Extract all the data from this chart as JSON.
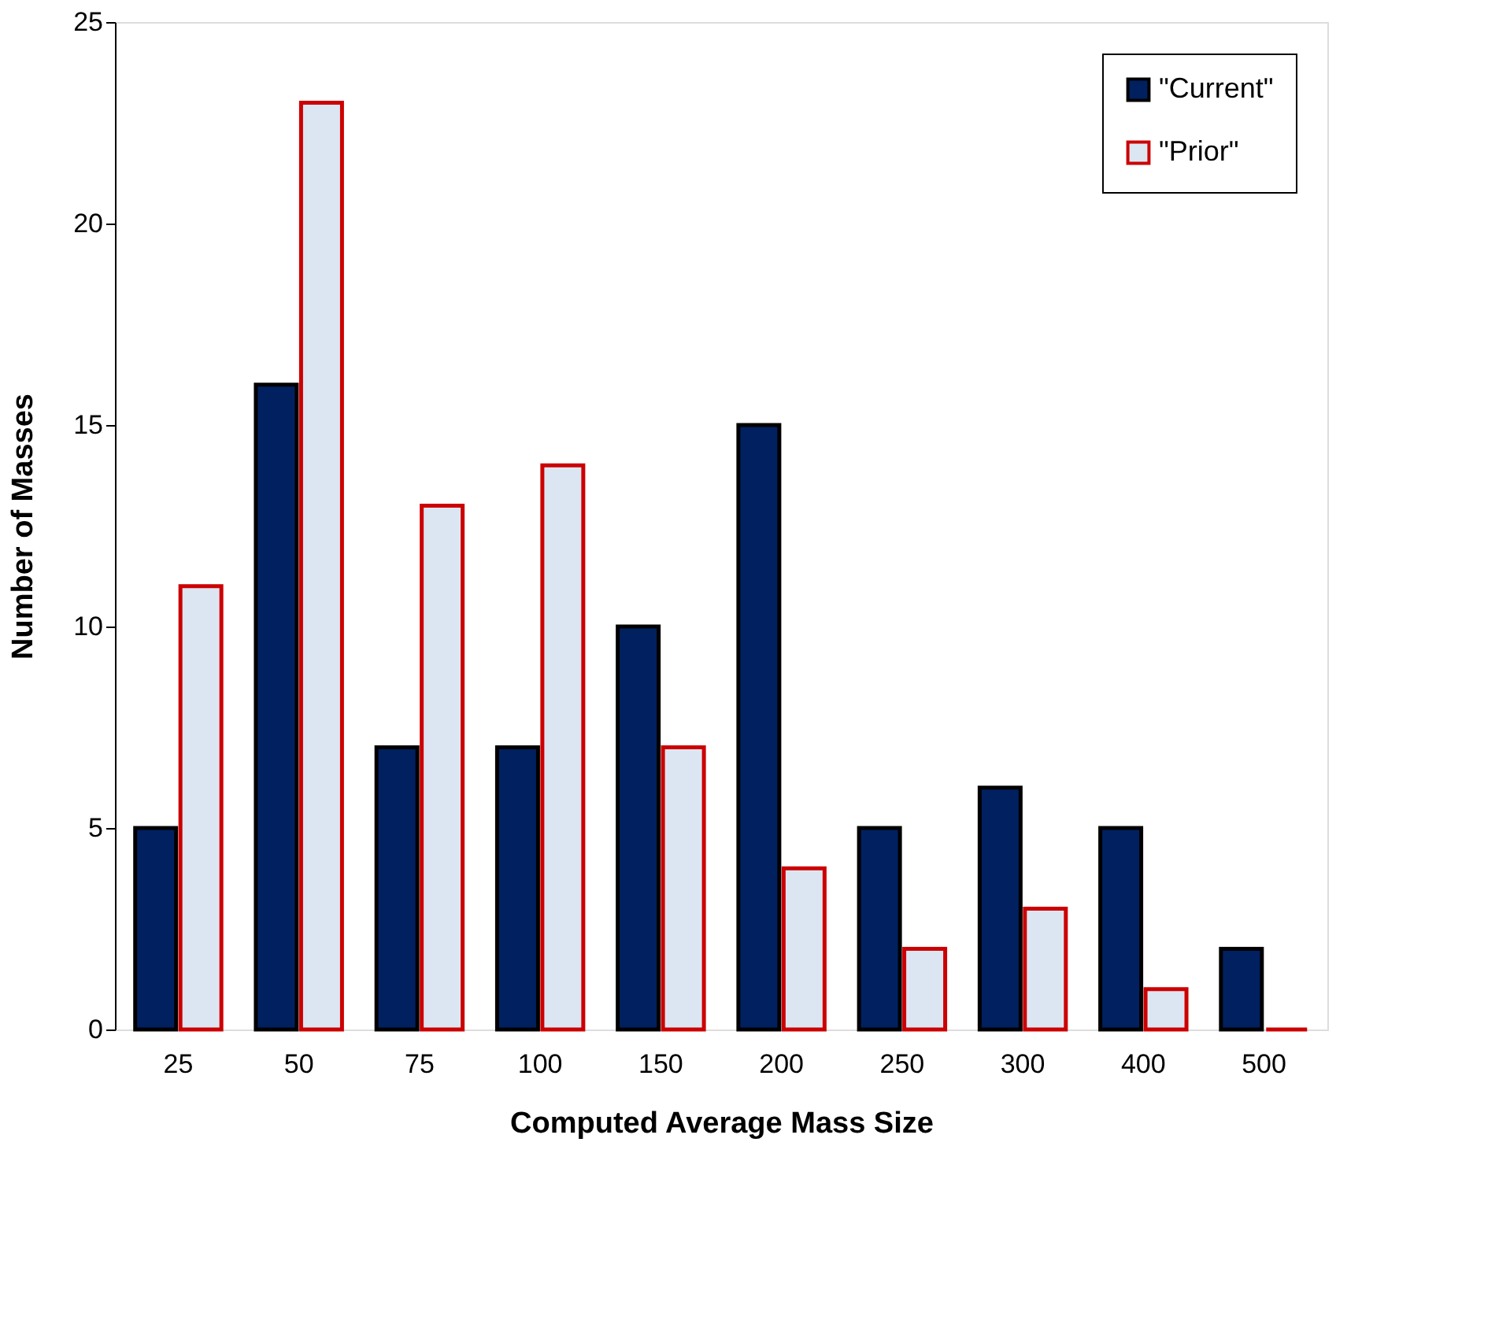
{
  "chart_data": {
    "type": "bar",
    "xlabel": "Computed Average Mass Size",
    "ylabel": "Number of Masses",
    "categories": [
      "25",
      "50",
      "75",
      "100",
      "150",
      "200",
      "250",
      "300",
      "400",
      "500"
    ],
    "series": [
      {
        "name": "\"Current\"",
        "color": "#002060",
        "values": [
          5,
          16,
          7,
          7,
          10,
          15,
          5,
          6,
          5,
          2
        ]
      },
      {
        "name": "\"Prior\"",
        "color": "#cc0000",
        "values": [
          11,
          23,
          13,
          14,
          7,
          4,
          2,
          3,
          1,
          0
        ]
      }
    ],
    "ylim": [
      0,
      25
    ],
    "yticks": [
      0,
      5,
      10,
      15,
      20,
      25
    ],
    "grid": false,
    "legend": "top right"
  }
}
